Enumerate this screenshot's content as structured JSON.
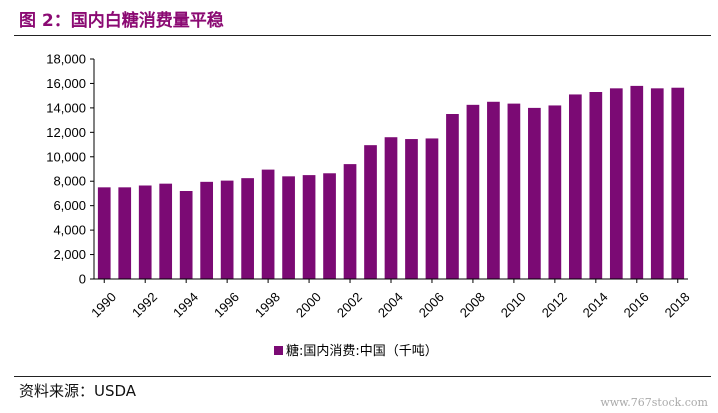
{
  "header": {
    "title": "图 2：国内白糖消费量平稳"
  },
  "footer": {
    "source": "资料来源：USDA",
    "watermark": "www.767stock.com"
  },
  "chart_data": {
    "type": "bar",
    "title": "",
    "xlabel": "",
    "ylabel": "",
    "ylim": [
      0,
      18000
    ],
    "y_ticks": [
      "0",
      "2,000",
      "4,000",
      "6,000",
      "8,000",
      "10,000",
      "12,000",
      "14,000",
      "16,000",
      "18,000"
    ],
    "categories": [
      "1990",
      "1991",
      "1992",
      "1993",
      "1994",
      "1995",
      "1996",
      "1997",
      "1998",
      "1999",
      "2000",
      "2001",
      "2002",
      "2003",
      "2004",
      "2005",
      "2006",
      "2007",
      "2008",
      "2009",
      "2010",
      "2011",
      "2012",
      "2013",
      "2014",
      "2015",
      "2016",
      "2017",
      "2018"
    ],
    "x_tick_labels": [
      "1990",
      "1992",
      "1994",
      "1996",
      "1998",
      "2000",
      "2002",
      "2004",
      "2006",
      "2008",
      "2010",
      "2012",
      "2014",
      "2016",
      "2018"
    ],
    "series": [
      {
        "name": "糖:国内消费:中国（千吨）",
        "color": "#7B0A74",
        "values": [
          7500,
          7500,
          7650,
          7800,
          7200,
          7950,
          8050,
          8250,
          8950,
          8400,
          8500,
          8650,
          9400,
          10950,
          11600,
          11450,
          11500,
          13500,
          14250,
          14500,
          14350,
          14000,
          14200,
          15100,
          15300,
          15600,
          15800,
          15600,
          15650
        ]
      }
    ],
    "legend": "bottom-center",
    "grid": false
  }
}
